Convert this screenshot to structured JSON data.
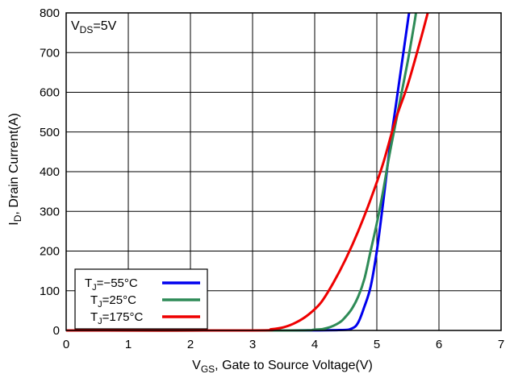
{
  "chart_data": {
    "type": "line",
    "annotation": {
      "main": "V",
      "sub": "DS",
      "rest": "=5V"
    },
    "xlabel": {
      "main": "V",
      "sub": "GS",
      "rest": ", Gate to Source Voltage(V)"
    },
    "ylabel": {
      "main": "I",
      "sub": "D",
      "rest": ", Drain Current(A)"
    },
    "xlim": [
      0,
      7
    ],
    "ylim": [
      0,
      800
    ],
    "x_ticks": [
      "0",
      "1",
      "2",
      "3",
      "4",
      "5",
      "6",
      "7"
    ],
    "y_ticks": [
      "0",
      "100",
      "200",
      "300",
      "400",
      "500",
      "600",
      "700",
      "800"
    ],
    "grid": true,
    "legend_position": "bottom-left",
    "series": [
      {
        "name": "TJ=−55°C",
        "label": {
          "main": "T",
          "sub": "J",
          "rest": "=−55°C"
        },
        "color": "#0000ee",
        "x": [
          0,
          3.5,
          4.4,
          4.6,
          4.7,
          4.8,
          4.9,
          5.0,
          5.1,
          5.2,
          5.3,
          5.4,
          5.5,
          5.52
        ],
        "y": [
          0,
          0,
          1,
          5,
          20,
          60,
          110,
          200,
          320,
          450,
          560,
          670,
          780,
          800
        ]
      },
      {
        "name": "TJ=25°C",
        "label": {
          "main": "T",
          "sub": "J",
          "rest": "=25°C"
        },
        "color": "#2e8b57",
        "x": [
          0,
          3.5,
          4.0,
          4.2,
          4.4,
          4.5,
          4.6,
          4.7,
          4.8,
          4.9,
          5.0,
          5.1,
          5.2,
          5.3,
          5.4,
          5.5,
          5.6,
          5.63
        ],
        "y": [
          0,
          0,
          2,
          6,
          20,
          35,
          55,
          85,
          130,
          200,
          270,
          350,
          440,
          520,
          600,
          680,
          770,
          800
        ]
      },
      {
        "name": "TJ=175°C",
        "label": {
          "main": "T",
          "sub": "J",
          "rest": "=175°C"
        },
        "color": "#ee0000",
        "x": [
          0,
          3.0,
          3.3,
          3.5,
          3.7,
          3.9,
          4.1,
          4.3,
          4.5,
          4.7,
          4.9,
          5.1,
          5.3,
          5.5,
          5.7,
          5.82
        ],
        "y": [
          0,
          0,
          3,
          8,
          20,
          40,
          70,
          120,
          180,
          250,
          330,
          420,
          530,
          620,
          730,
          800
        ]
      }
    ]
  }
}
